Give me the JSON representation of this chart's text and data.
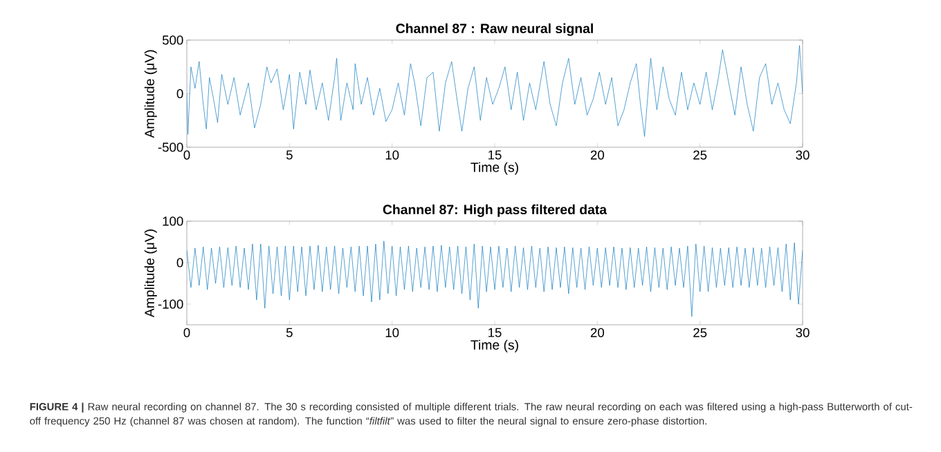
{
  "chart_data": [
    {
      "type": "line",
      "title": "Channel 87 : Raw neural signal",
      "xlabel": "Time (s)",
      "ylabel": "Amplitude (μV)",
      "xlim": [
        0,
        30
      ],
      "ylim": [
        -500,
        500
      ],
      "xticks": [
        0,
        5,
        10,
        15,
        20,
        25,
        30
      ],
      "yticks": [
        -500,
        0,
        500
      ],
      "series": [
        {
          "color": "#0072bd",
          "x": [
            0,
            0.05,
            0.2,
            0.4,
            0.6,
            0.8,
            0.95,
            1.1,
            1.3,
            1.5,
            1.7,
            2.0,
            2.3,
            2.6,
            3.0,
            3.3,
            3.6,
            3.9,
            4.1,
            4.4,
            4.7,
            5.0,
            5.2,
            5.5,
            5.8,
            6.0,
            6.3,
            6.6,
            6.9,
            7.2,
            7.3,
            7.5,
            7.8,
            8.1,
            8.2,
            8.5,
            8.8,
            9.1,
            9.4,
            9.7,
            10.0,
            10.3,
            10.6,
            10.9,
            11.1,
            11.4,
            11.7,
            12.0,
            12.3,
            12.6,
            12.9,
            13.2,
            13.4,
            13.7,
            14.0,
            14.3,
            14.6,
            14.9,
            15.2,
            15.5,
            15.8,
            16.1,
            16.4,
            16.7,
            17.0,
            17.4,
            17.7,
            18.0,
            18.3,
            18.6,
            18.9,
            19.2,
            19.5,
            19.8,
            20.1,
            20.4,
            20.7,
            21.0,
            21.3,
            21.6,
            21.9,
            22.1,
            22.3,
            22.6,
            22.9,
            23.2,
            23.5,
            23.8,
            24.1,
            24.4,
            24.7,
            25.0,
            25.3,
            25.6,
            25.9,
            26.1,
            26.4,
            26.7,
            27.0,
            27.3,
            27.6,
            27.9,
            28.2,
            28.5,
            28.8,
            29.1,
            29.4,
            29.7,
            29.85,
            30
          ],
          "values": [
            0,
            -380,
            250,
            50,
            300,
            -100,
            -330,
            150,
            -50,
            -270,
            180,
            -100,
            150,
            -200,
            100,
            -320,
            -100,
            250,
            100,
            230,
            -150,
            180,
            -330,
            200,
            -100,
            220,
            -150,
            100,
            -250,
            150,
            330,
            -250,
            100,
            -150,
            280,
            -100,
            150,
            -200,
            50,
            -260,
            -150,
            100,
            -200,
            280,
            100,
            -300,
            150,
            200,
            -350,
            100,
            300,
            -100,
            -350,
            50,
            250,
            -250,
            150,
            -100,
            50,
            250,
            -150,
            200,
            -250,
            100,
            -150,
            300,
            -100,
            -300,
            100,
            330,
            -100,
            150,
            -200,
            -50,
            200,
            -100,
            150,
            -300,
            -150,
            100,
            280,
            -100,
            -400,
            330,
            -150,
            250,
            -50,
            -200,
            200,
            -150,
            100,
            -100,
            200,
            -150,
            150,
            410,
            100,
            -200,
            250,
            -100,
            -350,
            150,
            280,
            -100,
            100,
            -150,
            -280,
            100,
            450,
            0
          ]
        }
      ]
    },
    {
      "type": "line",
      "title": "Channel 87: High pass filtered data",
      "xlabel": "Time (s)",
      "ylabel": "Amplitude (μV)",
      "xlim": [
        0,
        30
      ],
      "ylim": [
        -150,
        100
      ],
      "xticks": [
        0,
        5,
        10,
        15,
        20,
        25,
        30
      ],
      "yticks": [
        -100,
        0,
        100
      ],
      "annotations": [
        "**FIGURE 4 |** Raw neural recording on channel 87. The 30 s recording consisted of multiple different trials. The raw neural recording on each was filtered using a high-pass Butterworth of cut-off frequency 250 Hz (channel 87 was chosen at random). The function “*filtfilt*” was used to filter the neural signal to ensure zero-phase distortion."
      ],
      "series": [
        {
          "color": "#0072bd",
          "x": [
            0,
            0.2,
            0.4,
            0.6,
            0.8,
            1.0,
            1.2,
            1.4,
            1.6,
            1.8,
            2.0,
            2.2,
            2.4,
            2.6,
            2.8,
            3.0,
            3.2,
            3.4,
            3.6,
            3.8,
            4.0,
            4.2,
            4.4,
            4.6,
            4.8,
            5.0,
            5.2,
            5.4,
            5.6,
            5.8,
            6.0,
            6.2,
            6.4,
            6.6,
            6.8,
            7.0,
            7.2,
            7.4,
            7.6,
            7.8,
            8.0,
            8.2,
            8.4,
            8.6,
            8.8,
            9.0,
            9.2,
            9.4,
            9.6,
            9.8,
            10.0,
            10.2,
            10.4,
            10.6,
            10.8,
            11.0,
            11.2,
            11.4,
            11.6,
            11.8,
            12.0,
            12.2,
            12.4,
            12.6,
            12.8,
            13.0,
            13.2,
            13.4,
            13.6,
            13.8,
            14.0,
            14.2,
            14.4,
            14.6,
            14.8,
            15.0,
            15.2,
            15.4,
            15.6,
            15.8,
            16.0,
            16.2,
            16.4,
            16.6,
            16.8,
            17.0,
            17.2,
            17.4,
            17.6,
            17.8,
            18.0,
            18.2,
            18.4,
            18.6,
            18.8,
            19.0,
            19.2,
            19.4,
            19.6,
            19.8,
            20.0,
            20.2,
            20.4,
            20.6,
            20.8,
            21.0,
            21.2,
            21.4,
            21.6,
            21.8,
            22.0,
            22.2,
            22.4,
            22.6,
            22.8,
            23.0,
            23.2,
            23.4,
            23.6,
            23.8,
            24.0,
            24.2,
            24.4,
            24.6,
            24.8,
            25.0,
            25.2,
            25.4,
            25.6,
            25.8,
            26.0,
            26.2,
            26.4,
            26.6,
            26.8,
            27.0,
            27.2,
            27.4,
            27.6,
            27.8,
            28.0,
            28.2,
            28.4,
            28.6,
            28.8,
            29.0,
            29.2,
            29.4,
            29.6,
            29.8,
            30.0
          ],
          "values": [
            30,
            -60,
            35,
            -55,
            38,
            -65,
            35,
            -50,
            38,
            -60,
            36,
            -55,
            40,
            -60,
            35,
            -65,
            45,
            -90,
            45,
            -110,
            40,
            -75,
            38,
            -80,
            40,
            -90,
            40,
            -70,
            38,
            -80,
            40,
            -65,
            42,
            -70,
            38,
            -65,
            40,
            -75,
            35,
            -60,
            38,
            -70,
            40,
            -80,
            40,
            -95,
            45,
            -90,
            52,
            -75,
            40,
            -80,
            38,
            -65,
            40,
            -70,
            35,
            -60,
            38,
            -65,
            40,
            -70,
            42,
            -60,
            38,
            -65,
            40,
            -75,
            38,
            -90,
            45,
            -110,
            40,
            -70,
            38,
            -65,
            40,
            -60,
            35,
            -70,
            40,
            -60,
            36,
            -65,
            40,
            -60,
            35,
            -70,
            38,
            -65,
            36,
            -60,
            38,
            -75,
            36,
            -60,
            35,
            -65,
            38,
            -55,
            35,
            -60,
            36,
            -55,
            38,
            -60,
            35,
            -65,
            36,
            -60,
            35,
            -55,
            38,
            -70,
            36,
            -60,
            35,
            -65,
            38,
            -55,
            35,
            -60,
            40,
            -130,
            45,
            -70,
            40,
            -70,
            36,
            -60,
            35,
            -55,
            36,
            -60,
            38,
            -55,
            35,
            -60,
            36,
            -55,
            35,
            -60,
            38,
            -55,
            36,
            -70,
            45,
            -90,
            48,
            -100,
            30
          ]
        }
      ]
    }
  ]
}
